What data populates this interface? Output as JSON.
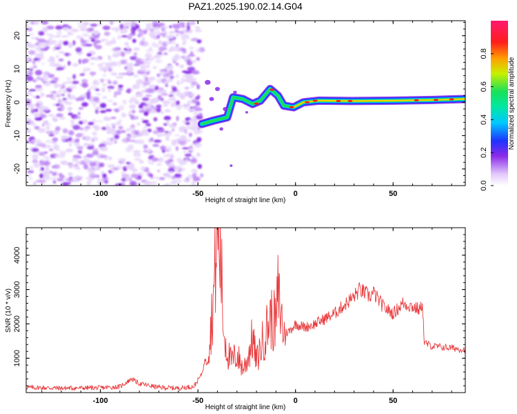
{
  "title": "PAZ1.2025.190.02.14.G04",
  "chart_data": [
    {
      "type": "heatmap",
      "xlabel": "Height of straight line (km)",
      "ylabel": "Frequency (Hz)",
      "xlim": [
        -138,
        87
      ],
      "ylim": [
        -25,
        24.5
      ],
      "xticks": [
        -100,
        -50,
        0,
        50
      ],
      "yticks": [
        -20,
        -10,
        0,
        10,
        20
      ],
      "colorbar": {
        "label": "Normalized spectral amplitude",
        "range": [
          0.0,
          1.0
        ],
        "ticks": [
          0.0,
          0.2,
          0.4,
          0.6,
          0.8
        ],
        "colormap": "white-purple-blue-cyan-green-yellow-red-pink"
      },
      "colors": {
        "noise_light": "#e6d4fb",
        "noise_mid": "#c18cf6",
        "noise_dark": "#8a2be8",
        "signal_blue": "#1e32ff",
        "signal_green": "#19e05a",
        "signal_red": "#ff1d1d"
      },
      "regions": {
        "noise_x_range": [
          -138,
          -48
        ],
        "noise_freq_range": [
          -25,
          24
        ],
        "ridge_points": [
          {
            "x": -48,
            "freq": -6.5
          },
          {
            "x": -42,
            "freq": -5.5
          },
          {
            "x": -35,
            "freq": -4.5
          },
          {
            "x": -32,
            "freq": 1.5
          },
          {
            "x": -27,
            "freq": 1.0
          },
          {
            "x": -22,
            "freq": -0.5
          },
          {
            "x": -18,
            "freq": 0.5
          },
          {
            "x": -13,
            "freq": 4.0
          },
          {
            "x": -9,
            "freq": 2.0
          },
          {
            "x": -6,
            "freq": -1.0
          },
          {
            "x": -1,
            "freq": -1.5
          },
          {
            "x": 4,
            "freq": 0.0
          },
          {
            "x": 12,
            "freq": 0.5
          },
          {
            "x": 30,
            "freq": 0.4
          },
          {
            "x": 50,
            "freq": 0.5
          },
          {
            "x": 70,
            "freq": 0.7
          },
          {
            "x": 87,
            "freq": 1.0
          }
        ]
      }
    },
    {
      "type": "line",
      "xlabel": "Height of straight line (km)",
      "ylabel": "SNR (10 * v/v)",
      "xlim": [
        -138,
        87
      ],
      "ylim": [
        0,
        4800
      ],
      "xticks": [
        -100,
        -50,
        0,
        50
      ],
      "yticks": [
        1000,
        2000,
        3000,
        4000
      ],
      "color": "#e8383b",
      "series": [
        {
          "x": [
            -138,
            -120,
            -100,
            -90,
            -84,
            -80,
            -70,
            -60,
            -52,
            -48,
            -44,
            -42,
            -40,
            -38,
            -37,
            -35,
            -33,
            -30,
            -27,
            -25,
            -22,
            -20,
            -18,
            -15,
            -13,
            -10,
            -9,
            -6,
            -3,
            0,
            5,
            10,
            20,
            30,
            33,
            38,
            40,
            45,
            50,
            55,
            60,
            64,
            65,
            66,
            70,
            80,
            87
          ],
          "y": [
            150,
            130,
            140,
            170,
            400,
            260,
            150,
            130,
            180,
            550,
            1500,
            2800,
            4700,
            3600,
            1900,
            1200,
            900,
            1100,
            700,
            900,
            1600,
            900,
            1300,
            1800,
            2200,
            2000,
            2900,
            1700,
            1800,
            2000,
            1900,
            2000,
            2300,
            2800,
            3000,
            2800,
            2900,
            2500,
            2300,
            2600,
            2500,
            2400,
            2650,
            1450,
            1350,
            1300,
            1250
          ]
        }
      ]
    }
  ]
}
